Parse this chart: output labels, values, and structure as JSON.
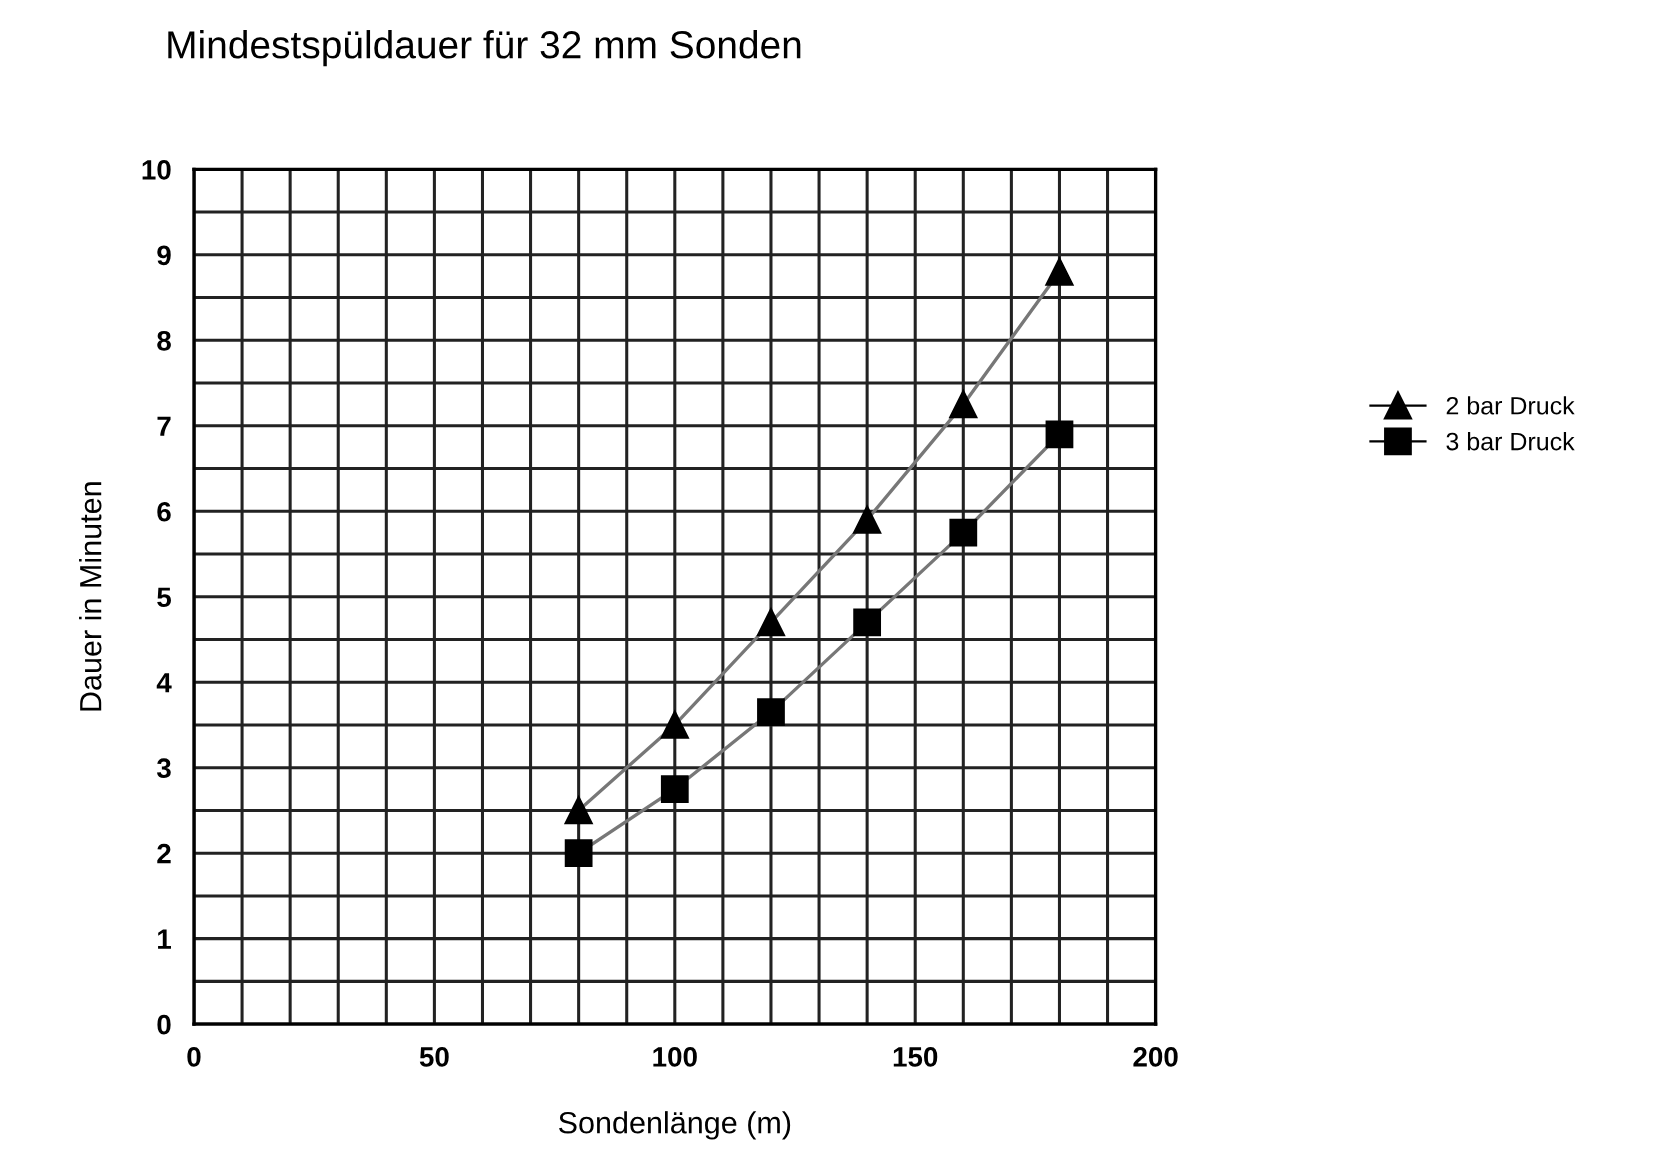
{
  "chart_data": {
    "type": "line",
    "title": "Mindestspüldauer für 32 mm Sonden",
    "xlabel": "Sondenlänge (m)",
    "ylabel": "Dauer in Minuten",
    "x": [
      80,
      100,
      120,
      140,
      160,
      180
    ],
    "series": [
      {
        "name": "2 bar Druck",
        "color": "#000000",
        "marker": "triangle",
        "values": [
          2.5,
          3.5,
          4.7,
          5.9,
          7.25,
          8.8
        ]
      },
      {
        "name": "3 bar Druck",
        "color": "#000000",
        "marker": "square",
        "values": [
          2.0,
          2.75,
          3.65,
          4.7,
          5.75,
          6.9
        ]
      }
    ],
    "xlim": [
      0,
      200
    ],
    "ylim": [
      0,
      10
    ],
    "xticks": [
      0,
      {
        "value": 10,
        "label": null
      },
      {
        "value": 20,
        "label": null
      },
      {
        "value": 30,
        "label": null
      },
      {
        "value": 40,
        "label": null
      },
      50,
      {
        "value": 60,
        "label": null
      },
      {
        "value": 70,
        "label": null
      },
      {
        "value": 80,
        "label": null
      },
      {
        "value": 90,
        "label": null
      },
      100,
      {
        "value": 110,
        "label": null
      },
      {
        "value": 120,
        "label": null
      },
      {
        "value": 130,
        "label": null
      },
      {
        "value": 140,
        "label": null
      },
      150,
      {
        "value": 160,
        "label": null
      },
      {
        "value": 170,
        "label": null
      },
      {
        "value": 180,
        "label": null
      },
      {
        "value": 190,
        "label": null
      },
      200
    ],
    "yticks": [
      0,
      {
        "value": 0.5,
        "label": null
      },
      1,
      {
        "value": 1.5,
        "label": null
      },
      2,
      {
        "value": 2.5,
        "label": null
      },
      3,
      {
        "value": 3.5,
        "label": null
      },
      4,
      {
        "value": 4.5,
        "label": null
      },
      5,
      {
        "value": 5.5,
        "label": null
      },
      6,
      {
        "value": 6.5,
        "label": null
      },
      7,
      {
        "value": 7.5,
        "label": null
      },
      8,
      {
        "value": 8.5,
        "label": null
      },
      9,
      {
        "value": 9.5,
        "label": null
      },
      10
    ],
    "grid": true,
    "legend": "right",
    "line_style": "solid"
  }
}
